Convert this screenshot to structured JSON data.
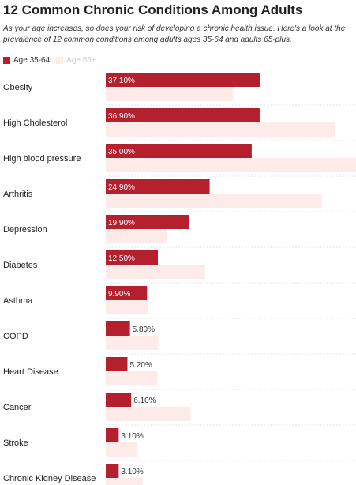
{
  "chart_data": {
    "type": "bar",
    "orientation": "horizontal",
    "title": "12 Common Chronic Conditions Among Adults",
    "subtitle": "As your age increases, so does your risk of developing a chronic health issue. Here's a look at the prevalence of 12 common conditions among adults ages 35-64 and adults 65-plus.",
    "categories": [
      "Obesity",
      "High Cholesterol",
      "High blood pressure",
      "Arthritis",
      "Depression",
      "Diabetes",
      "Asthma",
      "COPD",
      "Heart Disease",
      "Cancer",
      "Stroke",
      "Chronic Kidney Disease"
    ],
    "series": [
      {
        "name": "Age 35-64",
        "color": "#b5202e",
        "values": [
          37.1,
          36.9,
          35.0,
          24.9,
          19.9,
          12.5,
          9.9,
          5.8,
          5.2,
          6.1,
          3.1,
          3.1
        ],
        "labels": [
          "37.10%",
          "36.90%",
          "35.00%",
          "24.90%",
          "19.90%",
          "12.50%",
          "9.90%",
          "5.80%",
          "5.20%",
          "6.10%",
          "3.10%",
          "3.10%"
        ]
      },
      {
        "name": "Age 65+",
        "color": "#fcebe8",
        "values": [
          30.5,
          55.1,
          60.0,
          51.8,
          14.6,
          23.8,
          10.0,
          12.6,
          12.4,
          20.3,
          7.6,
          8.8
        ]
      }
    ],
    "xlim": [
      0,
      60
    ],
    "legend_position": "top-left",
    "grid": false
  }
}
